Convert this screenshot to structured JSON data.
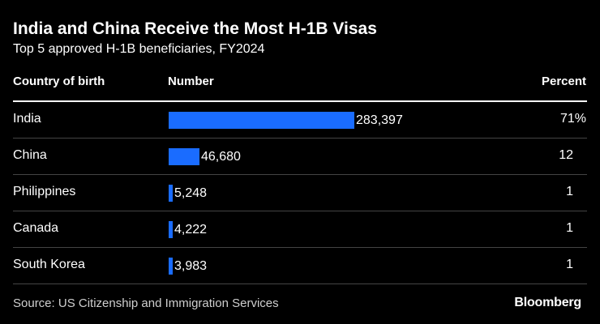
{
  "chart_data": {
    "type": "table",
    "title": "India and China Receive the Most H-1B Visas",
    "subtitle": "Top 5 approved H-1B beneficiaries, FY2024",
    "columns": [
      "Country of birth",
      "Number",
      "Percent"
    ],
    "bar_color": "#1a6cff",
    "rows": [
      {
        "country": "India",
        "number": 283397,
        "number_label": "283,397",
        "percent": "71%"
      },
      {
        "country": "China",
        "number": 46680,
        "number_label": "46,680",
        "percent": "12"
      },
      {
        "country": "Philippines",
        "number": 5248,
        "number_label": "5,248",
        "percent": "1"
      },
      {
        "country": "Canada",
        "number": 4222,
        "number_label": "4,222",
        "percent": "1"
      },
      {
        "country": "South Korea",
        "number": 3983,
        "number_label": "3,983",
        "percent": "1"
      }
    ]
  },
  "source": "Source: US Citizenship and Immigration Services",
  "logo": "Bloomberg"
}
